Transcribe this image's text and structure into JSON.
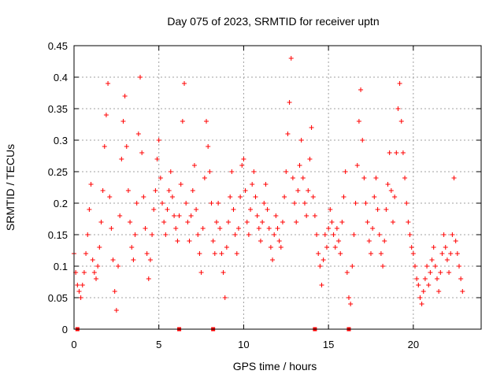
{
  "chart_data": {
    "type": "scatter",
    "title": "Day 075 of 2023, SRMTID for receiver uptn",
    "xlabel": "GPS time / hours",
    "ylabel": "SRMTID / TECUs",
    "xlim": [
      0,
      24
    ],
    "ylim": [
      0,
      0.45
    ],
    "xticks": [
      0,
      5,
      10,
      15,
      20
    ],
    "yticks": [
      0,
      0.05,
      0.1,
      0.15,
      0.2,
      0.25,
      0.3,
      0.35,
      0.4,
      0.45
    ],
    "grid": true,
    "marker": "plus",
    "color": "#ff0000",
    "zero_markers_x": [
      0.2,
      6.2,
      8.2,
      14.2,
      16.2
    ],
    "series": [
      {
        "name": "SRMTID",
        "points": [
          [
            0.0,
            0.12
          ],
          [
            0.1,
            0.09
          ],
          [
            0.2,
            0.07
          ],
          [
            0.3,
            0.06
          ],
          [
            0.4,
            0.05
          ],
          [
            0.5,
            0.07
          ],
          [
            0.6,
            0.09
          ],
          [
            0.7,
            0.12
          ],
          [
            0.8,
            0.15
          ],
          [
            0.9,
            0.19
          ],
          [
            1.0,
            0.23
          ],
          [
            1.1,
            0.11
          ],
          [
            1.2,
            0.09
          ],
          [
            1.3,
            0.08
          ],
          [
            1.4,
            0.1
          ],
          [
            1.5,
            0.13
          ],
          [
            1.6,
            0.17
          ],
          [
            1.7,
            0.22
          ],
          [
            1.8,
            0.29
          ],
          [
            1.9,
            0.34
          ],
          [
            2.0,
            0.39
          ],
          [
            2.1,
            0.21
          ],
          [
            2.2,
            0.16
          ],
          [
            2.3,
            0.11
          ],
          [
            2.4,
            0.06
          ],
          [
            2.5,
            0.03
          ],
          [
            2.6,
            0.1
          ],
          [
            2.7,
            0.18
          ],
          [
            2.8,
            0.27
          ],
          [
            2.9,
            0.33
          ],
          [
            3.0,
            0.37
          ],
          [
            3.1,
            0.29
          ],
          [
            3.2,
            0.22
          ],
          [
            3.3,
            0.17
          ],
          [
            3.4,
            0.13
          ],
          [
            3.5,
            0.11
          ],
          [
            3.6,
            0.15
          ],
          [
            3.7,
            0.2
          ],
          [
            3.8,
            0.31
          ],
          [
            3.9,
            0.4
          ],
          [
            4.0,
            0.28
          ],
          [
            4.1,
            0.21
          ],
          [
            4.2,
            0.16
          ],
          [
            4.3,
            0.12
          ],
          [
            4.4,
            0.08
          ],
          [
            4.5,
            0.11
          ],
          [
            4.6,
            0.15
          ],
          [
            4.7,
            0.19
          ],
          [
            4.8,
            0.22
          ],
          [
            4.9,
            0.27
          ],
          [
            5.0,
            0.3
          ],
          [
            5.1,
            0.24
          ],
          [
            5.2,
            0.2
          ],
          [
            5.3,
            0.17
          ],
          [
            5.4,
            0.15
          ],
          [
            5.5,
            0.19
          ],
          [
            5.6,
            0.22
          ],
          [
            5.7,
            0.25
          ],
          [
            5.8,
            0.21
          ],
          [
            5.9,
            0.18
          ],
          [
            6.0,
            0.16
          ],
          [
            6.1,
            0.14
          ],
          [
            6.2,
            0.18
          ],
          [
            6.3,
            0.23
          ],
          [
            6.4,
            0.33
          ],
          [
            6.5,
            0.39
          ],
          [
            6.6,
            0.2
          ],
          [
            6.7,
            0.17
          ],
          [
            6.8,
            0.14
          ],
          [
            6.9,
            0.18
          ],
          [
            7.0,
            0.22
          ],
          [
            7.1,
            0.26
          ],
          [
            7.2,
            0.19
          ],
          [
            7.3,
            0.15
          ],
          [
            7.4,
            0.12
          ],
          [
            7.5,
            0.09
          ],
          [
            7.6,
            0.16
          ],
          [
            7.7,
            0.24
          ],
          [
            7.8,
            0.33
          ],
          [
            7.9,
            0.29
          ],
          [
            8.0,
            0.25
          ],
          [
            8.1,
            0.2
          ],
          [
            8.2,
            0.14
          ],
          [
            8.3,
            0.12
          ],
          [
            8.4,
            0.17
          ],
          [
            8.5,
            0.2
          ],
          [
            8.6,
            0.16
          ],
          [
            8.7,
            0.12
          ],
          [
            8.8,
            0.09
          ],
          [
            8.9,
            0.05
          ],
          [
            9.0,
            0.13
          ],
          [
            9.1,
            0.17
          ],
          [
            9.2,
            0.21
          ],
          [
            9.3,
            0.25
          ],
          [
            9.4,
            0.19
          ],
          [
            9.5,
            0.15
          ],
          [
            9.6,
            0.12
          ],
          [
            9.7,
            0.16
          ],
          [
            9.8,
            0.21
          ],
          [
            9.9,
            0.26
          ],
          [
            10.0,
            0.27
          ],
          [
            10.1,
            0.22
          ],
          [
            10.2,
            0.17
          ],
          [
            10.3,
            0.15
          ],
          [
            10.4,
            0.19
          ],
          [
            10.5,
            0.23
          ],
          [
            10.6,
            0.25
          ],
          [
            10.7,
            0.21
          ],
          [
            10.8,
            0.18
          ],
          [
            10.9,
            0.16
          ],
          [
            11.0,
            0.14
          ],
          [
            11.1,
            0.17
          ],
          [
            11.2,
            0.2
          ],
          [
            11.3,
            0.23
          ],
          [
            11.4,
            0.19
          ],
          [
            11.5,
            0.16
          ],
          [
            11.6,
            0.13
          ],
          [
            11.7,
            0.11
          ],
          [
            11.8,
            0.15
          ],
          [
            11.9,
            0.18
          ],
          [
            12.0,
            0.16
          ],
          [
            12.1,
            0.14
          ],
          [
            12.2,
            0.13
          ],
          [
            12.3,
            0.17
          ],
          [
            12.4,
            0.21
          ],
          [
            12.5,
            0.25
          ],
          [
            12.6,
            0.31
          ],
          [
            12.7,
            0.36
          ],
          [
            12.8,
            0.43
          ],
          [
            12.9,
            0.24
          ],
          [
            13.0,
            0.2
          ],
          [
            13.1,
            0.17
          ],
          [
            13.2,
            0.22
          ],
          [
            13.3,
            0.26
          ],
          [
            13.4,
            0.3
          ],
          [
            13.5,
            0.24
          ],
          [
            13.6,
            0.2
          ],
          [
            13.7,
            0.18
          ],
          [
            13.8,
            0.22
          ],
          [
            13.9,
            0.27
          ],
          [
            14.0,
            0.32
          ],
          [
            14.1,
            0.21
          ],
          [
            14.2,
            0.18
          ],
          [
            14.3,
            0.15
          ],
          [
            14.4,
            0.12
          ],
          [
            14.5,
            0.1
          ],
          [
            14.6,
            0.07
          ],
          [
            14.7,
            0.11
          ],
          [
            14.8,
            0.15
          ],
          [
            14.9,
            0.13
          ],
          [
            15.0,
            0.16
          ],
          [
            15.1,
            0.19
          ],
          [
            15.2,
            0.17
          ],
          [
            15.3,
            0.15
          ],
          [
            15.4,
            0.13
          ],
          [
            15.5,
            0.16
          ],
          [
            15.6,
            0.14
          ],
          [
            15.7,
            0.12
          ],
          [
            15.8,
            0.17
          ],
          [
            15.9,
            0.21
          ],
          [
            16.0,
            0.25
          ],
          [
            16.1,
            0.09
          ],
          [
            16.2,
            0.05
          ],
          [
            16.3,
            0.04
          ],
          [
            16.4,
            0.1
          ],
          [
            16.5,
            0.15
          ],
          [
            16.6,
            0.2
          ],
          [
            16.7,
            0.26
          ],
          [
            16.8,
            0.33
          ],
          [
            16.9,
            0.38
          ],
          [
            17.0,
            0.3
          ],
          [
            17.1,
            0.24
          ],
          [
            17.2,
            0.2
          ],
          [
            17.3,
            0.17
          ],
          [
            17.4,
            0.14
          ],
          [
            17.5,
            0.12
          ],
          [
            17.6,
            0.16
          ],
          [
            17.7,
            0.21
          ],
          [
            17.8,
            0.24
          ],
          [
            17.9,
            0.19
          ],
          [
            18.0,
            0.15
          ],
          [
            18.1,
            0.12
          ],
          [
            18.2,
            0.1
          ],
          [
            18.3,
            0.14
          ],
          [
            18.4,
            0.19
          ],
          [
            18.5,
            0.23
          ],
          [
            18.6,
            0.28
          ],
          [
            18.7,
            0.22
          ],
          [
            18.8,
            0.17
          ],
          [
            18.9,
            0.21
          ],
          [
            19.0,
            0.28
          ],
          [
            19.1,
            0.35
          ],
          [
            19.2,
            0.39
          ],
          [
            19.3,
            0.33
          ],
          [
            19.4,
            0.28
          ],
          [
            19.5,
            0.24
          ],
          [
            19.6,
            0.2
          ],
          [
            19.7,
            0.17
          ],
          [
            19.8,
            0.15
          ],
          [
            19.9,
            0.13
          ],
          [
            20.0,
            0.12
          ],
          [
            20.1,
            0.1
          ],
          [
            20.2,
            0.08
          ],
          [
            20.3,
            0.07
          ],
          [
            20.4,
            0.05
          ],
          [
            20.5,
            0.04
          ],
          [
            20.6,
            0.06
          ],
          [
            20.7,
            0.08
          ],
          [
            20.8,
            0.1
          ],
          [
            20.9,
            0.07
          ],
          [
            21.0,
            0.09
          ],
          [
            21.1,
            0.11
          ],
          [
            21.2,
            0.13
          ],
          [
            21.3,
            0.1
          ],
          [
            21.4,
            0.08
          ],
          [
            21.5,
            0.06
          ],
          [
            21.6,
            0.09
          ],
          [
            21.7,
            0.12
          ],
          [
            21.8,
            0.15
          ],
          [
            21.9,
            0.13
          ],
          [
            22.0,
            0.11
          ],
          [
            22.1,
            0.09
          ],
          [
            22.2,
            0.12
          ],
          [
            22.3,
            0.15
          ],
          [
            22.4,
            0.24
          ],
          [
            22.5,
            0.14
          ],
          [
            22.6,
            0.12
          ],
          [
            22.7,
            0.1
          ],
          [
            22.8,
            0.08
          ],
          [
            22.9,
            0.06
          ]
        ]
      }
    ]
  }
}
